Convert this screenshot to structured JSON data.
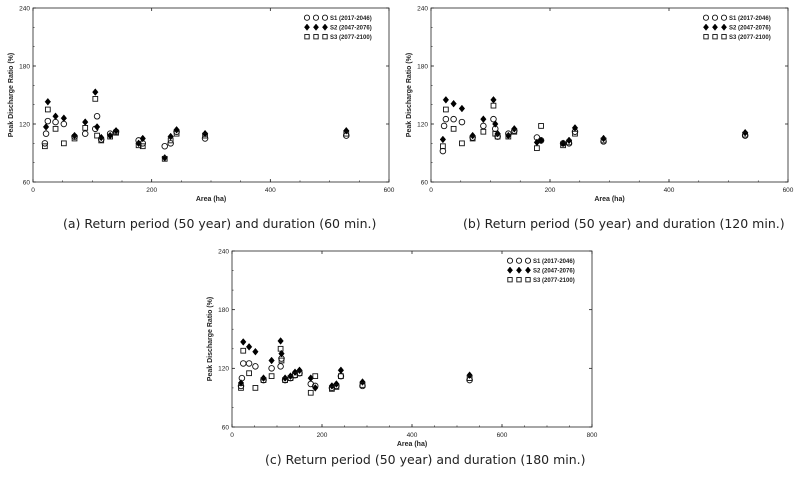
{
  "legend_symbol_open_circle": "open-circle",
  "legend_symbol_filled_diamond": "filled-diamond",
  "legend_symbol_open_square": "open-square",
  "captions": [
    "(a) Return period (50 year) and duration (60 min.)",
    "(b) Return period (50 year) and duration (120 min.)",
    "(c) Return period (50 year) and duration (180 min.)"
  ],
  "chart_data": [
    {
      "type": "scatter",
      "xlabel": "Area (ha)",
      "ylabel": "Peak Discharge Ratio (%)",
      "xlim": [
        0,
        600
      ],
      "ylim": [
        60,
        240
      ],
      "xticks": [
        0,
        200,
        400,
        600
      ],
      "yticks": [
        60,
        120,
        180,
        240
      ],
      "legend_position": "top-right",
      "series": [
        {
          "name": "S1 (2017-2046)",
          "marker": "circle",
          "x": [
            20,
            22,
            25,
            38,
            52,
            70,
            88,
            105,
            108,
            115,
            130,
            140,
            178,
            185,
            222,
            232,
            242,
            290,
            528
          ],
          "y": [
            100,
            110,
            123,
            122,
            120,
            107,
            110,
            115,
            128,
            104,
            110,
            112,
            103,
            100,
            97,
            100,
            112,
            105,
            108
          ]
        },
        {
          "name": "S2 (2047-2076)",
          "marker": "diamond",
          "x": [
            22,
            25,
            38,
            52,
            70,
            88,
            105,
            108,
            115,
            130,
            140,
            178,
            185,
            222,
            232,
            242,
            290,
            528
          ],
          "y": [
            117,
            143,
            128,
            126,
            108,
            122,
            153,
            117,
            106,
            108,
            113,
            100,
            105,
            85,
            107,
            114,
            110,
            113
          ]
        },
        {
          "name": "S3 (2077-2100)",
          "marker": "square",
          "x": [
            20,
            25,
            38,
            52,
            70,
            88,
            105,
            108,
            115,
            130,
            140,
            178,
            185,
            222,
            232,
            242,
            290,
            528
          ],
          "y": [
            97,
            135,
            115,
            100,
            105,
            116,
            146,
            108,
            103,
            107,
            111,
            98,
            97,
            84,
            103,
            110,
            108,
            110
          ]
        }
      ]
    },
    {
      "type": "scatter",
      "xlabel": "Area (ha)",
      "ylabel": "Peak Discharge Ratio (%)",
      "xlim": [
        0,
        600
      ],
      "ylim": [
        60,
        240
      ],
      "xticks": [
        0,
        200,
        400,
        600
      ],
      "yticks": [
        60,
        120,
        180,
        240
      ],
      "legend_position": "top-right",
      "series": [
        {
          "name": "S1 (2017-2046)",
          "marker": "circle",
          "x": [
            20,
            22,
            25,
            38,
            52,
            70,
            88,
            105,
            108,
            112,
            130,
            140,
            178,
            185,
            222,
            232,
            242,
            290,
            528
          ],
          "y": [
            92,
            118,
            125,
            125,
            122,
            106,
            118,
            125,
            115,
            107,
            110,
            113,
            106,
            103,
            100,
            100,
            112,
            102,
            108
          ]
        },
        {
          "name": "S2 (2047-2076)",
          "marker": "diamond",
          "x": [
            20,
            25,
            38,
            52,
            70,
            88,
            105,
            108,
            112,
            130,
            140,
            178,
            185,
            222,
            232,
            242,
            290,
            528
          ],
          "y": [
            104,
            145,
            141,
            136,
            108,
            125,
            145,
            120,
            110,
            108,
            115,
            101,
            103,
            100,
            103,
            116,
            105,
            111
          ]
        },
        {
          "name": "S3 (2077-2100)",
          "marker": "square",
          "x": [
            20,
            25,
            38,
            52,
            70,
            88,
            105,
            108,
            112,
            130,
            140,
            178,
            185,
            222,
            232,
            242,
            290,
            528
          ],
          "y": [
            97,
            135,
            115,
            100,
            105,
            112,
            139,
            110,
            107,
            107,
            112,
            95,
            118,
            98,
            101,
            110,
            103,
            109
          ]
        }
      ]
    },
    {
      "type": "scatter",
      "xlabel": "Area (ha)",
      "ylabel": "Peak Discharge Ratio (%)",
      "xlim": [
        0,
        800
      ],
      "ylim": [
        60,
        240
      ],
      "xticks": [
        0,
        200,
        400,
        600,
        800
      ],
      "yticks": [
        60,
        120,
        180,
        240
      ],
      "legend_position": "top-right",
      "series": [
        {
          "name": "S1 (2017-2046)",
          "marker": "circle",
          "x": [
            20,
            22,
            25,
            38,
            52,
            70,
            88,
            108,
            110,
            118,
            130,
            140,
            150,
            175,
            185,
            222,
            232,
            242,
            290,
            528
          ],
          "y": [
            102,
            110,
            125,
            125,
            122,
            108,
            120,
            122,
            130,
            108,
            110,
            113,
            115,
            104,
            102,
            100,
            102,
            112,
            102,
            108
          ]
        },
        {
          "name": "S2 (2047-2076)",
          "marker": "diamond",
          "x": [
            20,
            25,
            38,
            52,
            70,
            88,
            108,
            110,
            118,
            130,
            140,
            150,
            175,
            185,
            222,
            232,
            242,
            290,
            528
          ],
          "y": [
            105,
            147,
            142,
            137,
            110,
            128,
            148,
            135,
            110,
            112,
            116,
            118,
            110,
            100,
            102,
            104,
            118,
            106,
            113
          ]
        },
        {
          "name": "S3 (2077-2100)",
          "marker": "square",
          "x": [
            20,
            25,
            38,
            52,
            70,
            88,
            108,
            110,
            118,
            130,
            140,
            150,
            175,
            185,
            222,
            232,
            242,
            290,
            528
          ],
          "y": [
            100,
            138,
            115,
            100,
            108,
            112,
            140,
            128,
            108,
            110,
            113,
            115,
            95,
            112,
            99,
            101,
            112,
            103,
            110
          ]
        }
      ]
    }
  ]
}
